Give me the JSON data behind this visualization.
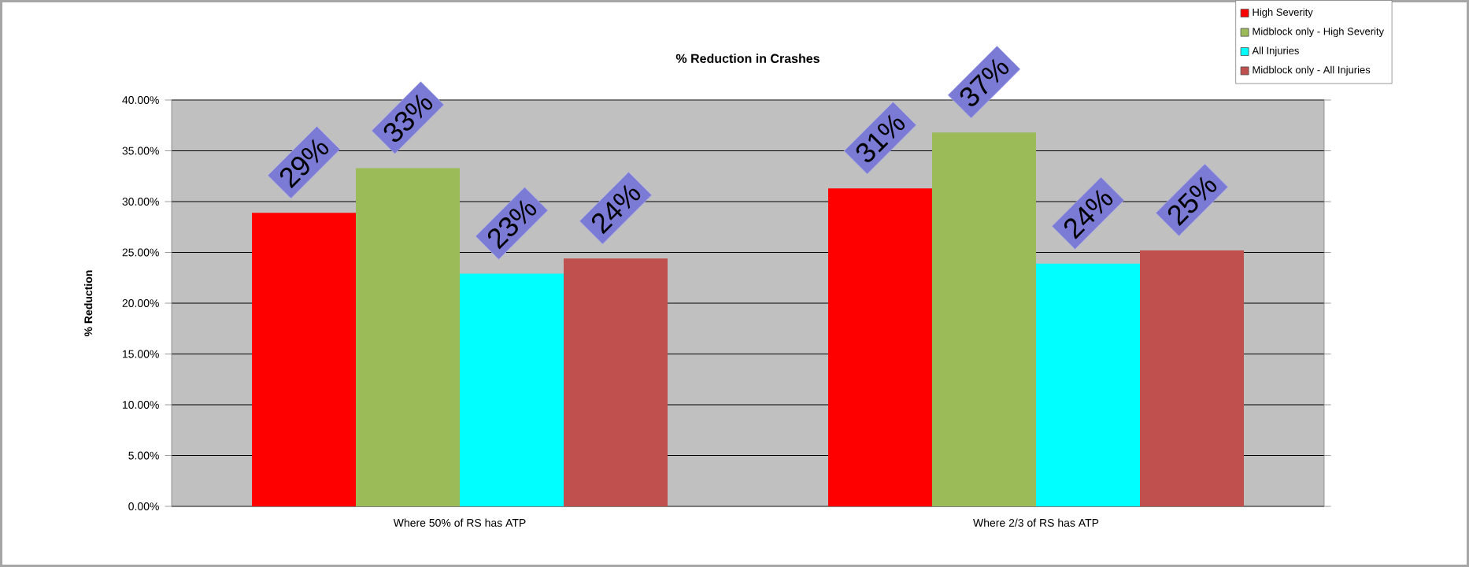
{
  "chart_data": {
    "type": "bar",
    "title": "% Reduction in Crashes",
    "ylabel": "% Reduction",
    "categories": [
      "Where 50% of RS has ATP",
      "Where 2/3 of RS has ATP"
    ],
    "series": [
      {
        "name": "High Severity",
        "color": "#ff0000",
        "values": [
          28.9,
          31.3
        ],
        "value_labels": [
          "29%",
          "31%"
        ]
      },
      {
        "name": "Midblock only - High Severity",
        "color": "#9bbb59",
        "values": [
          33.3,
          36.8
        ],
        "value_labels": [
          "33%",
          "37%"
        ]
      },
      {
        "name": "All Injuries",
        "color": "#00ffff",
        "values": [
          22.9,
          23.9
        ],
        "value_labels": [
          "23%",
          "24%"
        ]
      },
      {
        "name": "Midblock only - All Injuries",
        "color": "#c0504d",
        "values": [
          24.4,
          25.2
        ],
        "value_labels": [
          "24%",
          "25%"
        ]
      }
    ],
    "ylim": [
      0,
      40
    ],
    "yticks": [
      {
        "value": 0,
        "label": "0.00%"
      },
      {
        "value": 5,
        "label": "5.00%"
      },
      {
        "value": 10,
        "label": "10.00%"
      },
      {
        "value": 15,
        "label": "15.00%"
      },
      {
        "value": 20,
        "label": "20.00%"
      },
      {
        "value": 25,
        "label": "25.00%"
      },
      {
        "value": 30,
        "label": "30.00%"
      },
      {
        "value": 35,
        "label": "35.00%"
      },
      {
        "value": 40,
        "label": "40.00%"
      }
    ],
    "grid": "y",
    "legend": "top right"
  }
}
